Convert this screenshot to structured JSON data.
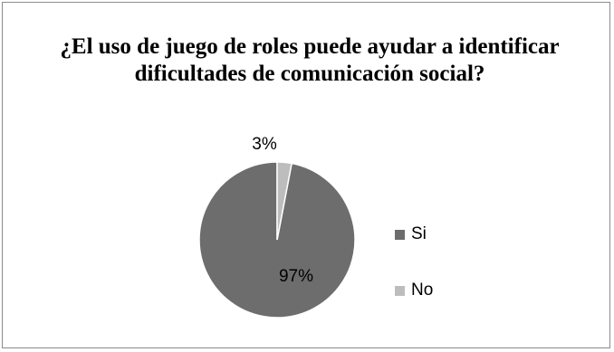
{
  "chart_data": {
    "type": "pie",
    "title": "¿El uso de juego de roles puede ayudar a identificar dificultades de comunicación social?",
    "categories": [
      "Si",
      "No"
    ],
    "values": [
      97,
      3
    ],
    "data_labels": [
      "97%",
      "3%"
    ],
    "colors": [
      "#6d6d6d",
      "#bdbdbd"
    ],
    "legend_position": "right"
  }
}
